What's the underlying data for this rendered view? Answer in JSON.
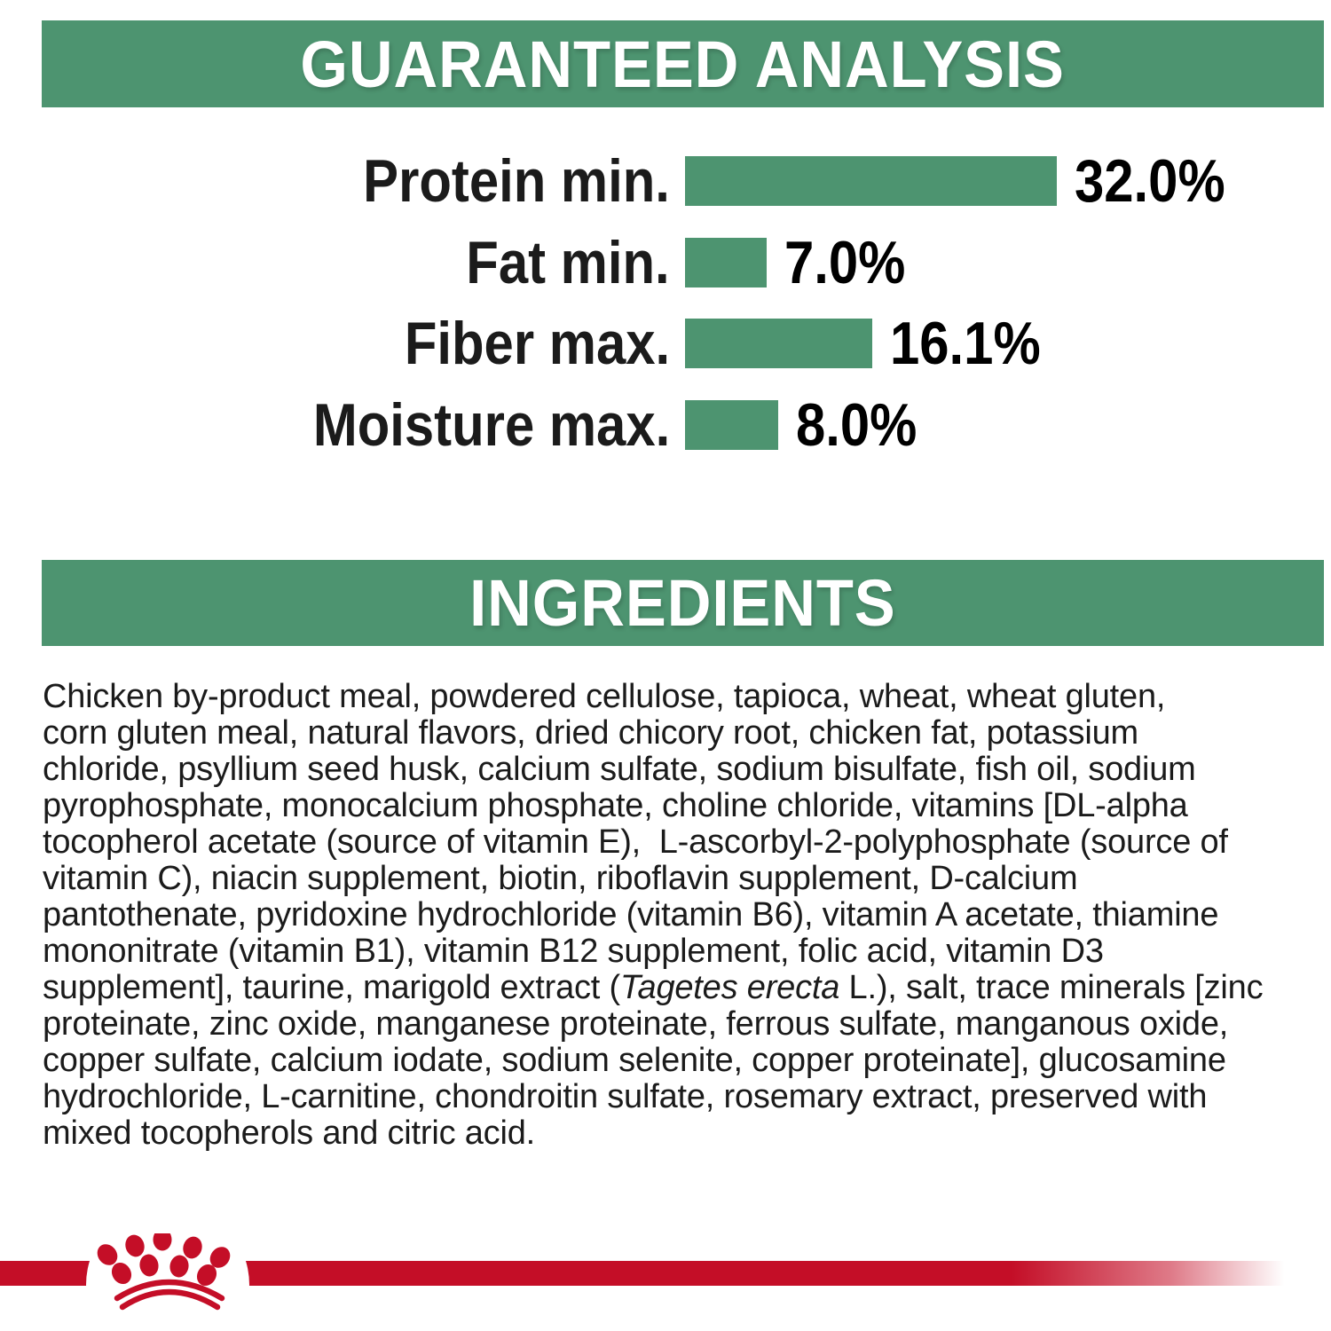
{
  "colors": {
    "banner_green": "#4D9470",
    "bar_green": "#4D9470",
    "brand_red": "#C40E27",
    "body_text": "#1B1B1B",
    "banner_text": "#FFFFFF",
    "background": "#FFFFFF"
  },
  "guaranteed_analysis": {
    "title": "GUARANTEED ANALYSIS"
  },
  "chart_data": {
    "type": "bar",
    "orientation": "horizontal",
    "title": "GUARANTEED ANALYSIS",
    "categories": [
      "Protein min.",
      "Fat min.",
      "Fiber max.",
      "Moisture max."
    ],
    "values": [
      32.0,
      7.0,
      16.1,
      8.0
    ],
    "value_labels": [
      "32.0%",
      "7.0%",
      "16.1%",
      "8.0%"
    ],
    "unit": "%",
    "xlim": [
      0,
      35
    ],
    "grid": false,
    "axes_hidden": true,
    "bar_color": "#4D9470",
    "value_label_position": "right-of-bar"
  },
  "ingredients": {
    "title": "INGREDIENTS",
    "parts": [
      {
        "italic": false,
        "text": "Chicken by-product meal, powdered cellulose, tapioca, wheat, wheat gluten,\ncorn gluten meal, natural flavors, dried chicory root, chicken fat, potassium\nchloride, psyllium seed husk, calcium sulfate, sodium bisulfate, fish oil, sodium\npyrophosphate, monocalcium phosphate, choline chloride, vitamins [DL-alpha\ntocopherol acetate (source of vitamin E),  L-ascorbyl-2-polyphosphate (source of\nvitamin C), niacin supplement, biotin, riboflavin supplement, D-calcium\npantothenate, pyridoxine hydrochloride (vitamin B6), vitamin A acetate, thiamine\nmononitrate (vitamin B1), vitamin B12 supplement, folic acid, vitamin D3\nsupplement], taurine, marigold extract ("
      },
      {
        "italic": true,
        "text": "Tagetes erecta"
      },
      {
        "italic": false,
        "text": " L.), salt, trace minerals [zinc\nproteinate, zinc oxide, manganese proteinate, ferrous sulfate, manganous oxide,\ncopper sulfate, calcium iodate, sodium selenite, copper proteinate], glucosamine\nhydrochloride, L-carnitine, chondroitin sulfate, rosemary extract, preserved with\nmixed tocopherols and citric acid."
      }
    ]
  },
  "footer": {
    "logo": "royal-canin-crown-logo"
  }
}
